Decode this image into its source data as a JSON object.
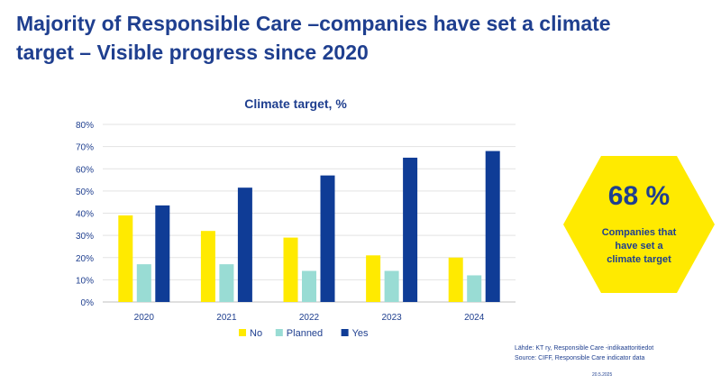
{
  "slide": {
    "title_line1": "Majority of Responsible Care –companies have set a climate",
    "title_line2": "target – Visible progress since 2020"
  },
  "chart_data": {
    "type": "bar",
    "title": "Climate target, %",
    "categories": [
      "2020",
      "2021",
      "2022",
      "2023",
      "2024"
    ],
    "series": [
      {
        "name": "No",
        "color": "#ffea00",
        "values": [
          39,
          32,
          29,
          21,
          20
        ]
      },
      {
        "name": "Planned",
        "color": "#99dcd4",
        "values": [
          17,
          17,
          14,
          14,
          12
        ]
      },
      {
        "name": "Yes",
        "color": "#0f3c96",
        "values": [
          43.5,
          51.5,
          57,
          65,
          68
        ]
      }
    ],
    "ylim": [
      0,
      80
    ],
    "yticks": [
      "0%",
      "10%",
      "20%",
      "30%",
      "40%",
      "50%",
      "60%",
      "70%",
      "80%"
    ],
    "grid": true,
    "legend": "bottom"
  },
  "highlight": {
    "value": "68 %",
    "caption_lines": [
      "Companies that",
      "have set a",
      "climate target"
    ],
    "color": "#ffea00"
  },
  "sources": {
    "line1": "Lähde: KT ry, Responsible Care -indikaattoritiedot",
    "line2": "Source: CIFF, Responsible Care indicator data"
  },
  "date": "20.5.2025"
}
